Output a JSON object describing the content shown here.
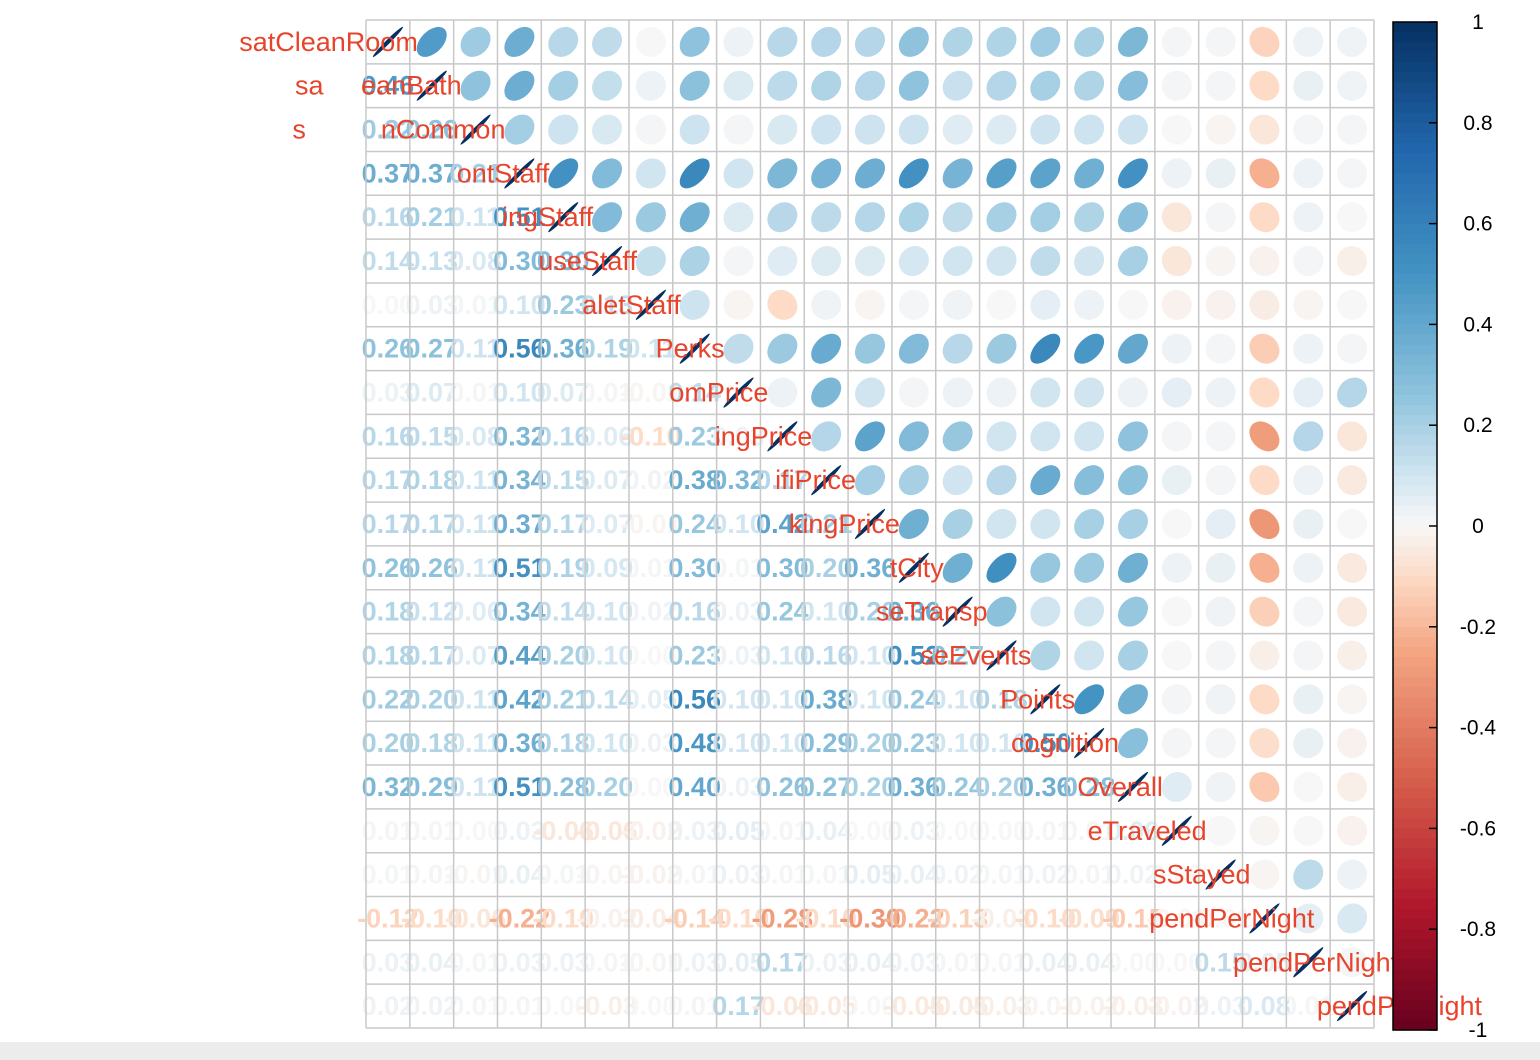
{
  "colors": {
    "label": "#e8442c",
    "grid": "#c8c8c8",
    "neg_strong": "#67001f",
    "pos_strong": "#053061"
  },
  "chart_data": {
    "type": "heatmap",
    "method": "ellipse (upper) + number (lower)",
    "variables": [
      "satCleanRoom",
      "satCleanBath",
      "satCleanCommon",
      "satFrontStaff",
      "satDiningStaff",
      "satHouseStaff",
      "satValetStaff",
      "satPerks",
      "satRoomPrice",
      "satDiningPrice",
      "satWifiPrice",
      "satParkingPrice",
      "satCity",
      "satCloseTransp",
      "satCloseEvents",
      "satPoints",
      "satRecognition",
      "satOverall",
      "distanceTraveled",
      "nightsStayed",
      "avgFoodSpendPerNight",
      "avgRoomSpendPerNight",
      "avgWifiSpendPerNight"
    ],
    "variable_labels": [
      "satCleanRoom",
      "sa     eanBath",
      "s          nCommon",
      "ontStaff",
      "ingStaff",
      "useStaff",
      "aletStaff",
      "Perks",
      "omPrice",
      "ingPrice",
      "ifiPrice",
      "kingPrice",
      "tCity",
      "seTransp",
      "seEvents",
      "Points",
      "cognition",
      "Overall",
      "eTraveled",
      "sStayed",
      "pendPerNight",
      "pendPerNight",
      "pendPerNight"
    ],
    "matrix": [
      [
        1.0,
        0.46,
        0.22,
        0.37,
        0.16,
        0.14,
        0.0,
        0.26,
        0.03,
        0.16,
        0.17,
        0.17,
        0.26,
        0.18,
        0.18,
        0.22,
        0.2,
        0.32,
        0.01,
        0.01,
        -0.12,
        0.03,
        0.02
      ],
      [
        0.46,
        1.0,
        0.26,
        0.37,
        0.21,
        0.13,
        0.03,
        0.27,
        0.07,
        0.15,
        0.18,
        0.17,
        0.26,
        0.12,
        0.17,
        0.2,
        0.18,
        0.29,
        0.01,
        0.01,
        -0.1,
        0.04,
        0.02
      ],
      [
        0.22,
        0.26,
        1.0,
        0.21,
        0.11,
        0.08,
        0.01,
        0.11,
        0.01,
        0.08,
        0.11,
        0.11,
        0.11,
        0.06,
        0.07,
        0.11,
        0.11,
        0.11,
        0.0,
        -0.01,
        -0.06,
        0.01,
        0.01
      ],
      [
        0.37,
        0.37,
        0.21,
        1.0,
        0.51,
        0.3,
        0.1,
        0.56,
        0.1,
        0.32,
        0.34,
        0.37,
        0.51,
        0.34,
        0.44,
        0.42,
        0.36,
        0.51,
        0.03,
        0.04,
        -0.22,
        0.03,
        0.01
      ],
      [
        0.16,
        0.21,
        0.11,
        0.51,
        1.0,
        0.3,
        0.23,
        0.36,
        0.07,
        0.16,
        0.15,
        0.17,
        0.19,
        0.14,
        0.2,
        0.21,
        0.18,
        0.28,
        -0.06,
        0.01,
        -0.1,
        0.03,
        0.0
      ],
      [
        0.14,
        0.13,
        0.08,
        0.3,
        0.3,
        1.0,
        0.13,
        0.19,
        0.01,
        0.06,
        0.07,
        0.07,
        0.09,
        0.1,
        0.1,
        0.14,
        0.1,
        0.2,
        -0.06,
        -0.01,
        -0.02,
        0.01,
        -0.03
      ],
      [
        0.0,
        0.03,
        0.01,
        0.1,
        0.23,
        0.13,
        1.0,
        0.11,
        -0.01,
        -0.1,
        0.02,
        -0.01,
        0.01,
        0.02,
        0.0,
        0.05,
        0.03,
        0.0,
        -0.02,
        -0.02,
        -0.04,
        -0.01,
        0.0
      ],
      [
        0.26,
        0.27,
        0.11,
        0.56,
        0.36,
        0.19,
        0.11,
        1.0,
        0.14,
        0.23,
        0.38,
        0.24,
        0.3,
        0.16,
        0.23,
        0.56,
        0.48,
        0.4,
        0.03,
        0.01,
        -0.14,
        0.03,
        0.01
      ],
      [
        0.03,
        0.07,
        0.01,
        0.1,
        0.07,
        0.01,
        -0.01,
        0.14,
        1.0,
        0.03,
        0.32,
        0.1,
        0.01,
        0.03,
        0.03,
        0.1,
        0.1,
        0.03,
        0.05,
        0.03,
        -0.1,
        0.05,
        0.17
      ],
      [
        0.16,
        0.15,
        0.08,
        0.32,
        0.16,
        0.06,
        -0.1,
        0.23,
        0.03,
        1.0,
        0.17,
        0.42,
        0.3,
        0.24,
        0.1,
        0.1,
        0.1,
        0.26,
        0.01,
        0.01,
        -0.28,
        0.17,
        -0.06
      ],
      [
        0.17,
        0.18,
        0.11,
        0.34,
        0.15,
        0.07,
        0.02,
        0.38,
        0.32,
        0.17,
        1.0,
        0.21,
        0.2,
        0.1,
        0.16,
        0.38,
        0.29,
        0.27,
        0.04,
        0.01,
        -0.1,
        0.03,
        -0.05
      ],
      [
        0.17,
        0.17,
        0.11,
        0.37,
        0.17,
        0.07,
        -0.01,
        0.24,
        0.1,
        0.42,
        0.21,
        1.0,
        0.36,
        0.2,
        0.1,
        0.1,
        0.2,
        0.2,
        0.0,
        0.05,
        -0.3,
        0.04,
        0.0
      ],
      [
        0.26,
        0.26,
        0.11,
        0.51,
        0.19,
        0.09,
        0.01,
        0.3,
        0.01,
        0.3,
        0.2,
        0.36,
        1.0,
        0.36,
        0.52,
        0.24,
        0.23,
        0.36,
        0.03,
        0.04,
        -0.22,
        0.03,
        -0.05
      ],
      [
        0.18,
        0.12,
        0.06,
        0.34,
        0.14,
        0.1,
        0.02,
        0.16,
        0.03,
        0.24,
        0.1,
        0.2,
        0.36,
        1.0,
        0.27,
        0.1,
        0.1,
        0.24,
        0.0,
        0.02,
        -0.13,
        0.01,
        -0.05
      ],
      [
        0.18,
        0.17,
        0.07,
        0.44,
        0.2,
        0.1,
        0.0,
        0.23,
        0.03,
        0.1,
        0.16,
        0.1,
        0.52,
        0.27,
        1.0,
        0.18,
        0.1,
        0.2,
        0.0,
        0.01,
        -0.03,
        0.01,
        -0.03
      ],
      [
        0.22,
        0.2,
        0.11,
        0.42,
        0.21,
        0.14,
        0.05,
        0.56,
        0.1,
        0.1,
        0.38,
        0.1,
        0.24,
        0.1,
        0.18,
        1.0,
        0.5,
        0.36,
        0.01,
        0.02,
        -0.1,
        0.04,
        -0.01
      ],
      [
        0.2,
        0.18,
        0.11,
        0.36,
        0.18,
        0.1,
        0.03,
        0.48,
        0.1,
        0.1,
        0.29,
        0.2,
        0.23,
        0.1,
        0.1,
        0.5,
        1.0,
        0.28,
        0.01,
        0.01,
        -0.09,
        0.04,
        -0.02
      ],
      [
        0.32,
        0.29,
        0.11,
        0.51,
        0.28,
        0.2,
        0.0,
        0.4,
        0.03,
        0.26,
        0.27,
        0.2,
        0.36,
        0.24,
        0.2,
        0.36,
        0.28,
        1.0,
        0.06,
        0.02,
        -0.15,
        0.0,
        -0.03
      ],
      [
        0.01,
        0.01,
        0.0,
        0.03,
        -0.06,
        -0.06,
        -0.02,
        0.03,
        0.05,
        0.01,
        0.04,
        0.0,
        0.03,
        0.0,
        0.0,
        0.01,
        0.01,
        0.06,
        1.0,
        0.0,
        -0.01,
        0.0,
        -0.02
      ],
      [
        0.01,
        0.01,
        -0.01,
        0.04,
        0.01,
        -0.01,
        -0.02,
        0.01,
        0.03,
        0.01,
        0.01,
        0.05,
        0.04,
        0.02,
        0.01,
        0.02,
        0.01,
        0.02,
        0.0,
        1.0,
        -0.01,
        0.15,
        0.03
      ],
      [
        -0.12,
        -0.1,
        -0.06,
        -0.22,
        -0.1,
        -0.02,
        -0.04,
        -0.14,
        -0.1,
        -0.28,
        -0.1,
        -0.3,
        -0.22,
        -0.13,
        -0.03,
        -0.1,
        -0.09,
        -0.15,
        -0.01,
        -0.01,
        1.0,
        0.05,
        0.08
      ],
      [
        0.03,
        0.04,
        0.01,
        0.03,
        0.03,
        0.01,
        -0.01,
        0.03,
        0.05,
        0.17,
        0.03,
        0.04,
        0.03,
        0.01,
        0.01,
        0.04,
        0.04,
        0.0,
        0.0,
        0.15,
        0.05,
        1.0,
        0.01
      ],
      [
        0.02,
        0.02,
        0.01,
        0.01,
        0.0,
        -0.03,
        0.0,
        0.01,
        0.17,
        -0.06,
        -0.05,
        0.0,
        -0.05,
        -0.05,
        -0.03,
        -0.01,
        -0.02,
        -0.03,
        -0.02,
        0.03,
        0.08,
        0.01,
        1.0
      ]
    ],
    "colorbar": {
      "range": [
        -1,
        1
      ],
      "ticks": [
        "1",
        "0.8",
        "0.6",
        "0.4",
        "0.2",
        "0",
        "-0.2",
        "-0.4",
        "-0.6",
        "-0.8",
        "-1"
      ]
    }
  }
}
